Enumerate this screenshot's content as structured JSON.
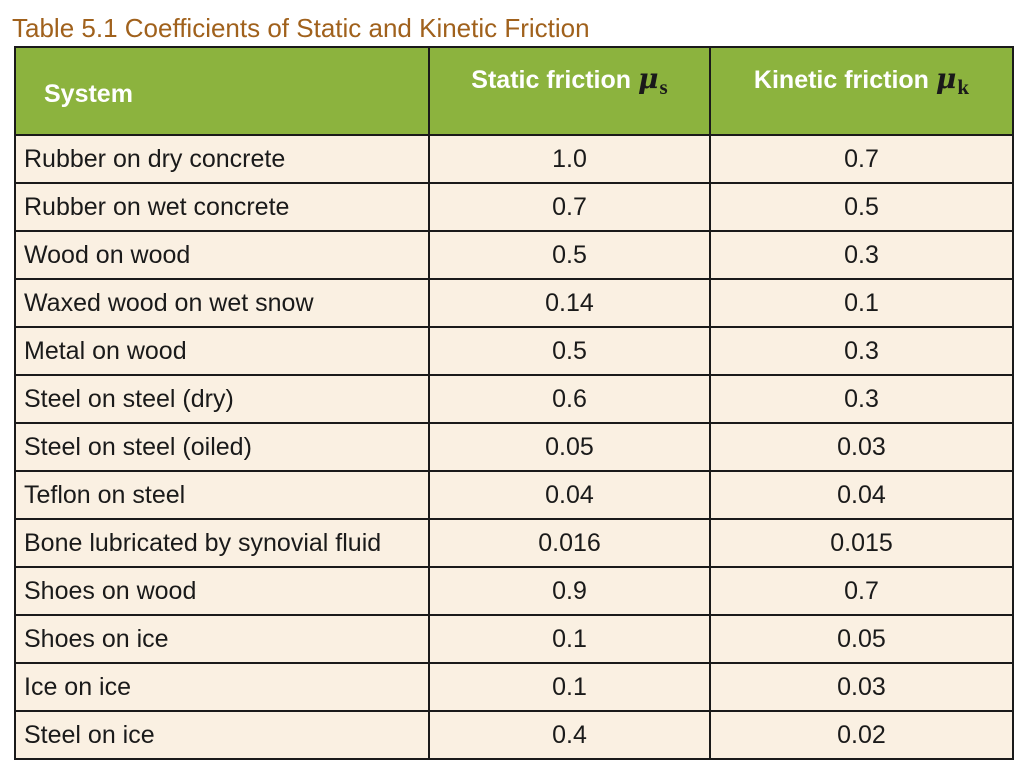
{
  "caption": "Table 5.1 Coefficients of Static and Kinetic Friction",
  "header": {
    "system": "System",
    "static_label": "Static friction",
    "static_symbol": "μ",
    "static_subscript": "s",
    "kinetic_label": "Kinetic friction",
    "kinetic_symbol": "μ",
    "kinetic_subscript": "k"
  },
  "rows": [
    {
      "system": "Rubber on dry concrete",
      "static": "1.0",
      "kinetic": "0.7"
    },
    {
      "system": "Rubber on wet concrete",
      "static": "0.7",
      "kinetic": "0.5"
    },
    {
      "system": "Wood on wood",
      "static": "0.5",
      "kinetic": "0.3"
    },
    {
      "system": "Waxed wood on wet snow",
      "static": "0.14",
      "kinetic": "0.1"
    },
    {
      "system": "Metal on wood",
      "static": "0.5",
      "kinetic": "0.3"
    },
    {
      "system": "Steel on steel (dry)",
      "static": "0.6",
      "kinetic": "0.3"
    },
    {
      "system": "Steel on steel (oiled)",
      "static": "0.05",
      "kinetic": "0.03"
    },
    {
      "system": "Teflon on steel",
      "static": "0.04",
      "kinetic": "0.04"
    },
    {
      "system": "Bone lubricated by synovial fluid",
      "static": "0.016",
      "kinetic": "0.015"
    },
    {
      "system": "Shoes on wood",
      "static": "0.9",
      "kinetic": "0.7"
    },
    {
      "system": "Shoes on ice",
      "static": "0.1",
      "kinetic": "0.05"
    },
    {
      "system": "Ice on ice",
      "static": "0.1",
      "kinetic": "0.03"
    },
    {
      "system": "Steel on ice",
      "static": "0.4",
      "kinetic": "0.02"
    }
  ],
  "colors": {
    "caption": "#a0611c",
    "header_bg": "#8cb33e",
    "cell_bg": "#faf0e2",
    "border": "#1a1a1a"
  }
}
